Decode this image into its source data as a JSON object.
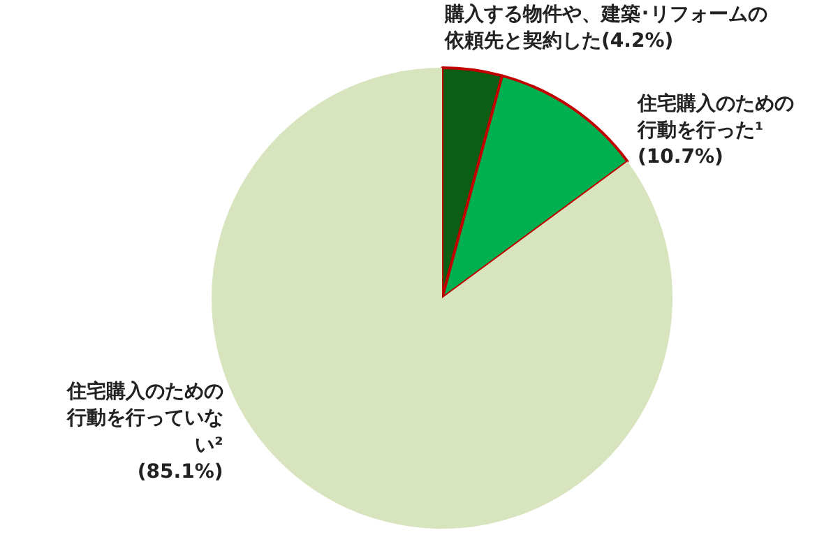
{
  "chart_data": {
    "type": "pie",
    "categories": [
      "購入する物件や、建築･リフォームの依頼先と契約した",
      "住宅購入のための行動を行った¹",
      "住宅購入のための行動を行っていない²"
    ],
    "values": [
      4.2,
      10.7,
      85.1
    ],
    "value_labels": [
      "(4.2%)",
      "(10.7%)",
      "(85.1%)"
    ],
    "colors": [
      "#0b5e14",
      "#00b050",
      "#d7e4bd"
    ]
  }
}
